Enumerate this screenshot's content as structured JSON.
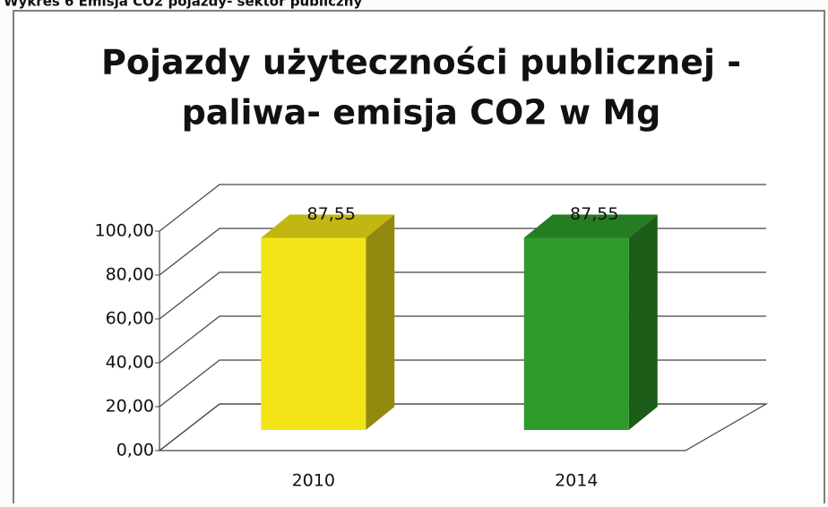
{
  "caption": "Wykres 6 Emisja CO2 pojazdy- sektor publiczny",
  "chart_data": {
    "type": "bar3d",
    "title": [
      "Pojazdy użyteczności publicznej -",
      "paliwa- emisja CO2 w Mg"
    ],
    "categories": [
      "2010",
      "2014"
    ],
    "values": [
      87.55,
      87.55
    ],
    "value_labels": [
      "87,55",
      "87,55"
    ],
    "colors": [
      "#f3e418",
      "#2f9b2c"
    ],
    "ylim": [
      0,
      100
    ],
    "yticks": [
      {
        "value": 0,
        "label": "0,00"
      },
      {
        "value": 20,
        "label": "20,00"
      },
      {
        "value": 40,
        "label": "40,00"
      },
      {
        "value": 60,
        "label": "60,00"
      },
      {
        "value": 80,
        "label": "80,00"
      },
      {
        "value": 100,
        "label": "100,00"
      }
    ],
    "grid": true
  }
}
